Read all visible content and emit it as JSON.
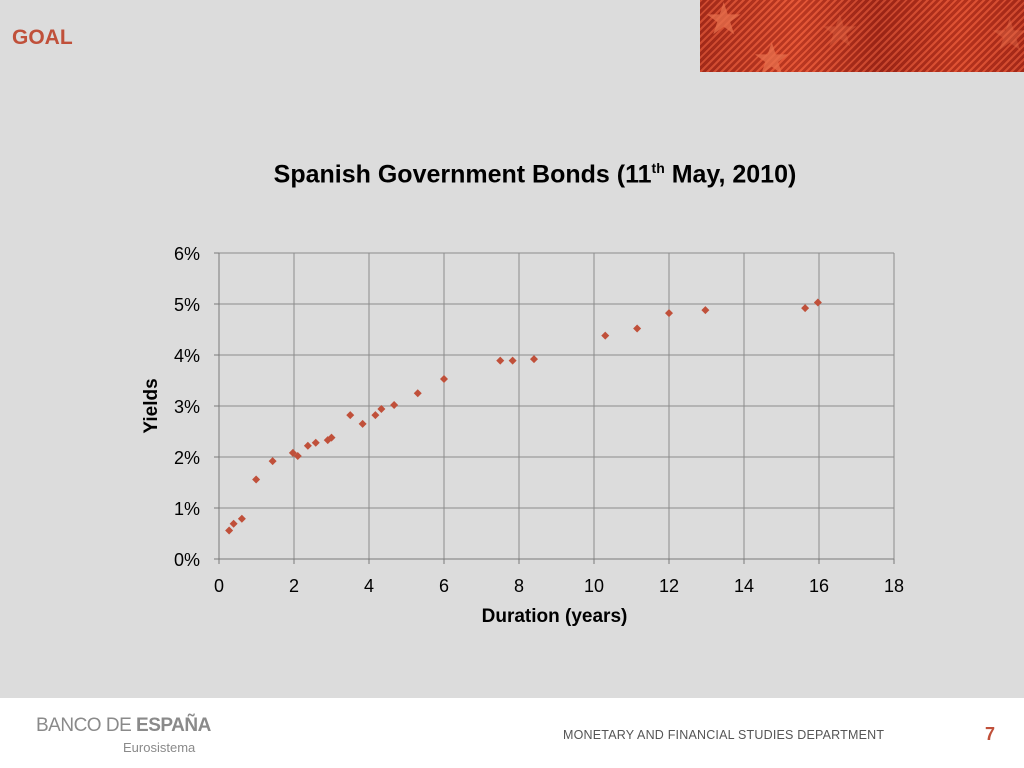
{
  "slide": {
    "title": "GOAL"
  },
  "chart_data": {
    "type": "scatter",
    "title_main": "Spanish Government Bonds (11",
    "title_sup": "th",
    "title_rest": " May, 2010)",
    "xlabel": "Duration (years)",
    "ylabel": "Yields",
    "xlim": [
      0,
      18
    ],
    "ylim": [
      0,
      0.06
    ],
    "x_ticks": [
      0,
      2,
      4,
      6,
      8,
      10,
      12,
      14,
      16,
      18
    ],
    "y_ticks": [
      "0%",
      "1%",
      "2%",
      "3%",
      "4%",
      "5%",
      "6%"
    ],
    "grid": true,
    "marker": "diamond",
    "marker_color": "#c0503a",
    "points": [
      {
        "x": 0.27,
        "y": 0.0056
      },
      {
        "x": 0.39,
        "y": 0.0069
      },
      {
        "x": 0.61,
        "y": 0.0079
      },
      {
        "x": 0.99,
        "y": 0.0156
      },
      {
        "x": 1.43,
        "y": 0.0192
      },
      {
        "x": 1.97,
        "y": 0.0208
      },
      {
        "x": 2.1,
        "y": 0.0202
      },
      {
        "x": 2.37,
        "y": 0.0222
      },
      {
        "x": 2.58,
        "y": 0.0228
      },
      {
        "x": 2.9,
        "y": 0.0233
      },
      {
        "x": 3.0,
        "y": 0.0238
      },
      {
        "x": 3.5,
        "y": 0.0282
      },
      {
        "x": 3.83,
        "y": 0.0265
      },
      {
        "x": 4.17,
        "y": 0.0282
      },
      {
        "x": 4.33,
        "y": 0.0294
      },
      {
        "x": 4.67,
        "y": 0.0302
      },
      {
        "x": 5.3,
        "y": 0.0325
      },
      {
        "x": 6.0,
        "y": 0.0353
      },
      {
        "x": 7.5,
        "y": 0.0389
      },
      {
        "x": 7.83,
        "y": 0.0389
      },
      {
        "x": 8.4,
        "y": 0.0392
      },
      {
        "x": 10.3,
        "y": 0.0438
      },
      {
        "x": 11.15,
        "y": 0.0452
      },
      {
        "x": 12.0,
        "y": 0.0482
      },
      {
        "x": 12.97,
        "y": 0.0488
      },
      {
        "x": 15.63,
        "y": 0.0492
      },
      {
        "x": 15.97,
        "y": 0.0503
      }
    ]
  },
  "footer": {
    "bank_light": "BANCO DE ",
    "bank_bold": "ESPAÑA",
    "bank_sub": "Eurosistema",
    "department": "MONETARY AND FINANCIAL STUDIES DEPARTMENT",
    "page_number": "7"
  }
}
